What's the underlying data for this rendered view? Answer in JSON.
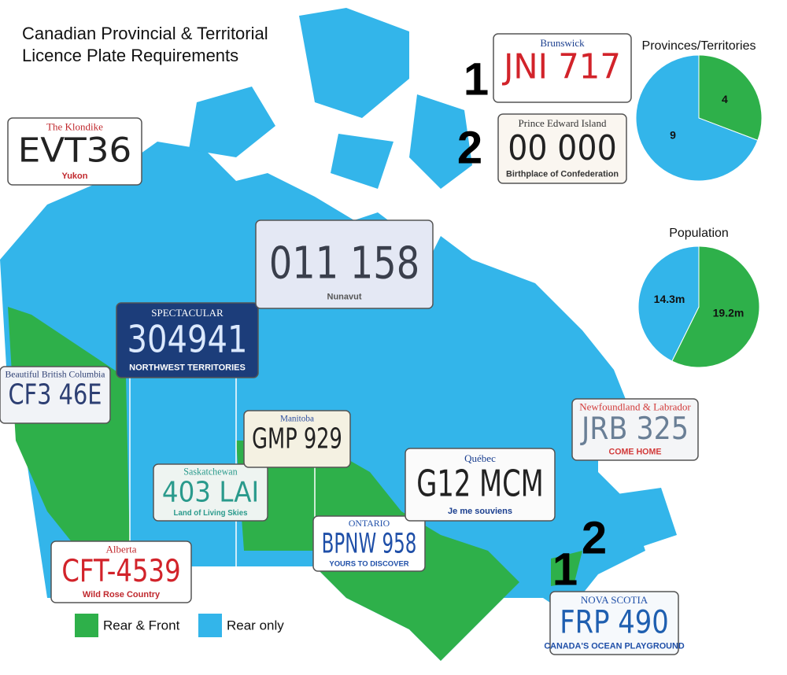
{
  "title_lines": [
    "Canadian Provincial & Territorial",
    "Licence Plate Requirements"
  ],
  "legend": {
    "items": [
      {
        "name": "Rear & Front",
        "color": "#2eb04a"
      },
      {
        "name": "Rear only",
        "color": "#33b5ea"
      }
    ]
  },
  "markers": [
    "1",
    "2",
    "1",
    "2"
  ],
  "plates": [
    {
      "header": "The Klondike",
      "number": "EVT36",
      "footer": "Yukon"
    },
    {
      "header": "SPECTACULAR",
      "number": "304941",
      "footer": "NORTHWEST TERRITORIES"
    },
    {
      "number": "011 158",
      "footer": "Nunavut"
    },
    {
      "header": "Beautiful British Columbia",
      "number": "CF3 46E"
    },
    {
      "header": "Alberta",
      "number": "CFT-4539",
      "footer": "Wild Rose Country"
    },
    {
      "header": "Saskatchewan",
      "number": "403 LAI",
      "footer": "Land of Living Skies"
    },
    {
      "header": "Manitoba",
      "number": "GMP 929"
    },
    {
      "header": "ONTARIO",
      "number": "BPNW 958",
      "footer": "YOURS TO DISCOVER"
    },
    {
      "header": "Québec",
      "number": "G12 MCM",
      "footer": "Je me souviens"
    },
    {
      "header": "Newfoundland & Labrador",
      "number": "JRB 325",
      "footer": "COME HOME"
    },
    {
      "header": "Brunswick",
      "number": "JNI 717"
    },
    {
      "header": "Prince Edward Island",
      "number": "00 000",
      "footer": "Birthplace of Confederation"
    },
    {
      "header": "NOVA SCOTIA",
      "number": "FRP 490",
      "footer": "CANADA'S OCEAN PLAYGROUND"
    }
  ],
  "chart_data": [
    {
      "type": "pie",
      "title": "Provinces/Territories",
      "values": [
        4,
        9
      ],
      "colors": [
        "#2eb04a",
        "#33b5ea"
      ]
    },
    {
      "type": "pie",
      "title": "Population",
      "values": [
        19.2,
        14.3
      ],
      "value_labels": [
        "19.2m",
        "14.3m"
      ],
      "colors": [
        "#2eb04a",
        "#33b5ea"
      ]
    }
  ]
}
